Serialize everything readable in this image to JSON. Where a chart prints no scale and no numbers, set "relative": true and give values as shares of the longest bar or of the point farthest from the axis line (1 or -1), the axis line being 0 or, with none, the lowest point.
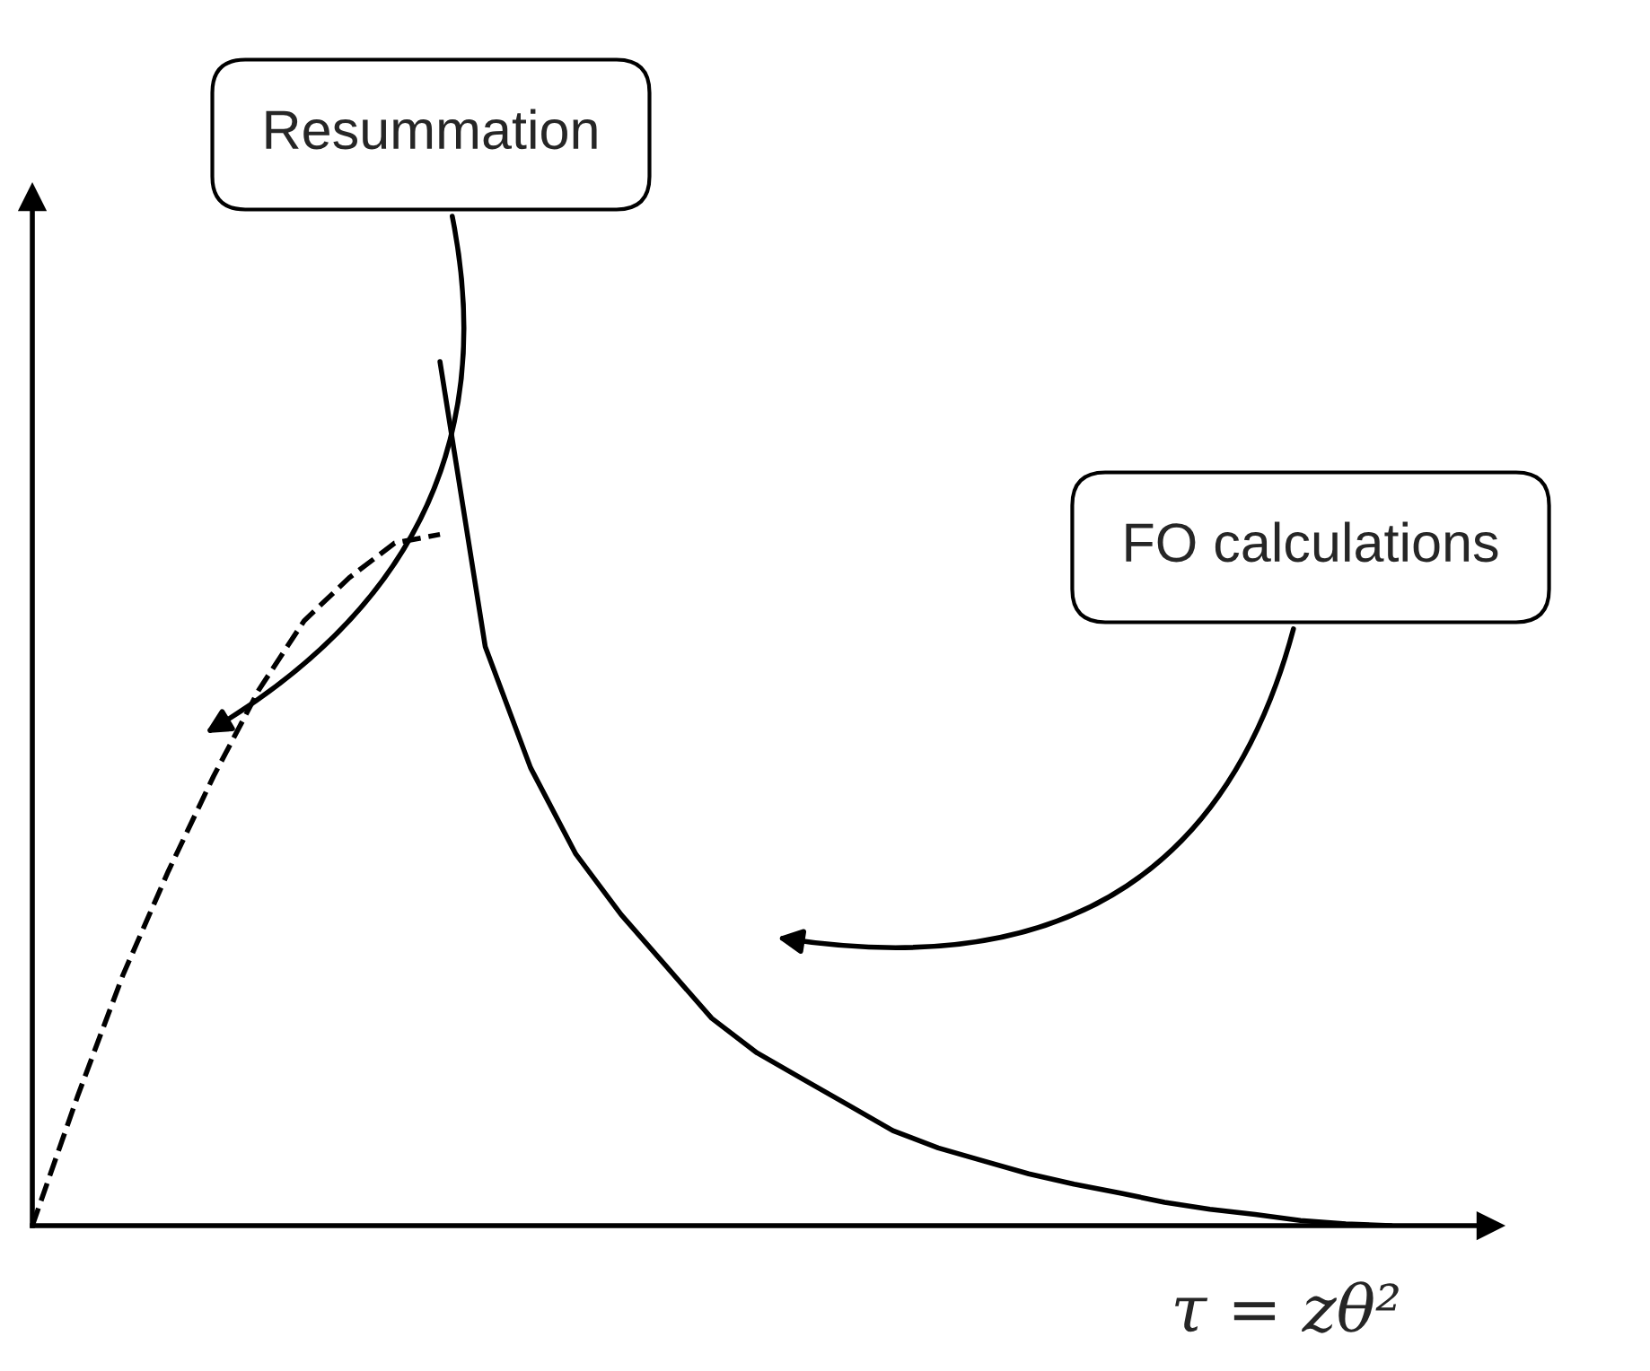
{
  "chart_data": {
    "type": "line",
    "relative": true,
    "xlabel": "τ = zθ²",
    "categories": [
      null,
      null,
      null,
      null,
      null,
      null,
      null,
      null,
      null,
      null,
      null,
      null,
      null,
      null,
      null,
      null,
      null,
      null,
      null,
      null,
      null,
      null,
      null,
      null,
      null,
      null,
      null,
      null,
      null,
      null,
      null
    ],
    "series": [
      {
        "color": "#000000",
        "line_style": "dashed",
        "values": [
          0,
          0.15,
          0.29,
          0.41,
          0.52,
          0.62,
          0.7,
          0.75,
          0.79,
          0.8,
          null,
          null,
          null,
          null,
          null,
          null,
          null,
          null,
          null,
          null,
          null,
          null,
          null,
          null,
          null,
          null,
          null,
          null,
          null,
          null,
          null
        ]
      },
      {
        "color": "#000000",
        "line_style": "solid",
        "values": [
          null,
          null,
          null,
          null,
          null,
          null,
          null,
          null,
          null,
          1.0,
          0.67,
          0.53,
          0.43,
          0.36,
          0.3,
          0.24,
          0.2,
          0.17,
          0.14,
          0.11,
          0.09,
          0.075,
          0.06,
          0.048,
          0.038,
          0.027,
          0.019,
          0.013,
          0.006,
          0.002,
          0
        ]
      }
    ],
    "annotations": [
      "Resummation",
      "FO calculations"
    ],
    "legend": false,
    "marker": "none"
  }
}
